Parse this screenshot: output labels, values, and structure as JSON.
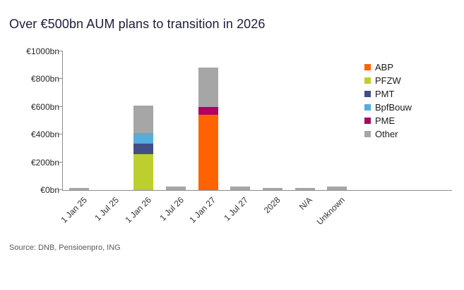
{
  "page": {
    "title": "Over €500bn AUM plans to transition in 2026",
    "source": "Source: DNB, Pensioenpro, ING"
  },
  "chart_data": {
    "type": "bar",
    "stacked": true,
    "title": "Over €500bn AUM plans to transition in 2026",
    "xlabel": "",
    "ylabel": "",
    "categories": [
      "1 Jan 25",
      "1 Jul 25",
      "1 Jan 26",
      "1 Jul 26",
      "1 Jan 27",
      "1 Jul 27",
      "2028",
      "N/A",
      "Unknown"
    ],
    "series": [
      {
        "name": "ABP",
        "color": "#FF6200",
        "values": [
          0,
          0,
          0,
          0,
          545,
          0,
          0,
          0,
          0
        ]
      },
      {
        "name": "PFZW",
        "color": "#BCCF2F",
        "values": [
          0,
          0,
          260,
          0,
          0,
          0,
          0,
          0,
          0
        ]
      },
      {
        "name": "PMT",
        "color": "#414E87",
        "values": [
          0,
          0,
          75,
          0,
          0,
          0,
          0,
          0,
          0
        ]
      },
      {
        "name": "BpfBouw",
        "color": "#56ACDC",
        "values": [
          0,
          0,
          75,
          0,
          0,
          0,
          0,
          0,
          0
        ]
      },
      {
        "name": "PME",
        "color": "#B00062",
        "values": [
          0,
          0,
          0,
          0,
          55,
          0,
          0,
          0,
          0
        ]
      },
      {
        "name": "Other",
        "color": "#A6A6A6",
        "values": [
          15,
          0,
          200,
          25,
          285,
          25,
          15,
          15,
          25
        ]
      }
    ],
    "ylim": [
      0,
      1000
    ],
    "yticks": [
      {
        "value": 0,
        "label": "€0bn"
      },
      {
        "value": 200,
        "label": "€200bn"
      },
      {
        "value": 400,
        "label": "€400bn"
      },
      {
        "value": 600,
        "label": "€600bn"
      },
      {
        "value": 800,
        "label": "€800bn"
      },
      {
        "value": 1000,
        "label": "€1000bn"
      }
    ],
    "legend_position": "right",
    "grid": false
  }
}
